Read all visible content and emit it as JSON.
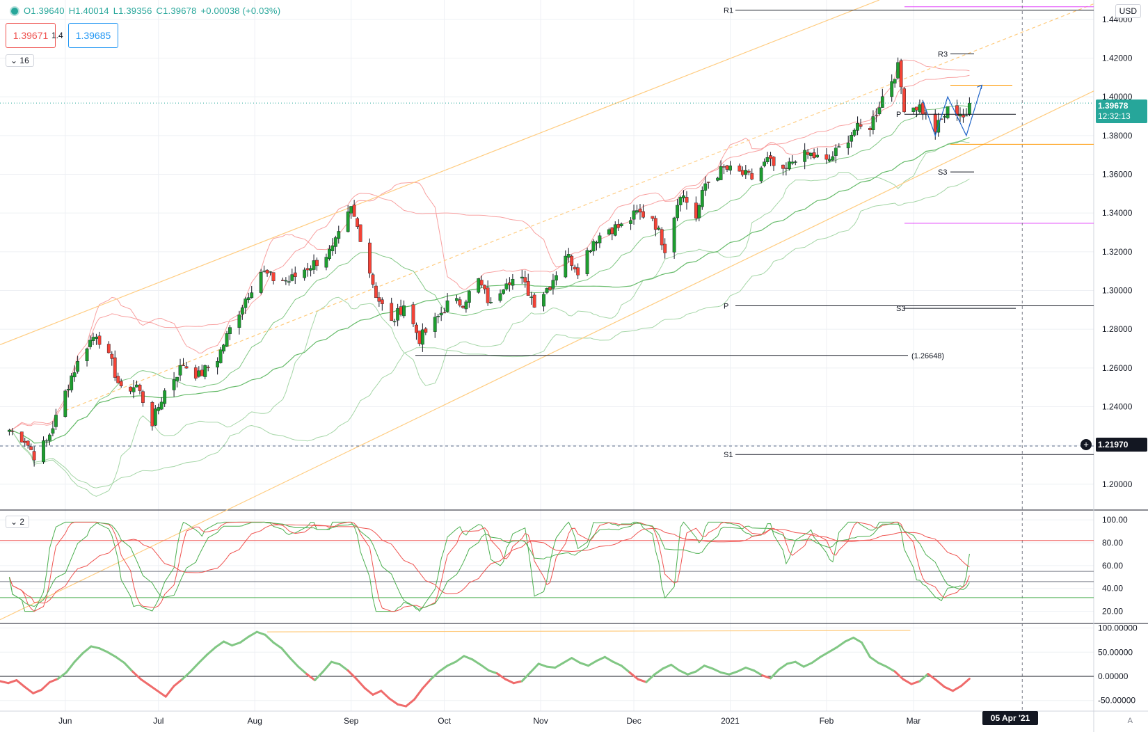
{
  "legend": {
    "open": "O1.39640",
    "high": "H1.40014",
    "low": "L1.39356",
    "close": "C1.39678",
    "change": "+0.00038 (+0.03%)"
  },
  "quote": {
    "bid": "1.39671",
    "spread": "1.4",
    "ask": "1.39685"
  },
  "main_pane_label": "16",
  "stoch_pane_label": "2",
  "currency": "USD",
  "last_price": "1.39678",
  "countdown": "12:32:13",
  "crosshair_price": "1.21970",
  "crosshair_date": "05 Apr '21",
  "scale_mode": "A",
  "colors": {
    "up": "#26a69a",
    "down": "#ef5350",
    "upCandle": "#1e9e2f",
    "downCandle": "#f44336"
  },
  "chart_data": [
    {
      "type": "candlestick",
      "y_ticks": [
        "1.44000",
        "1.42000",
        "1.40000",
        "1.38000",
        "1.36000",
        "1.34000",
        "1.32000",
        "1.30000",
        "1.28000",
        "1.26000",
        "1.24000",
        "1.22000",
        "1.20000"
      ],
      "ylim": [
        1.187,
        1.45
      ],
      "x_ticks": [
        "Jun",
        "Jul",
        "Aug",
        "Sep",
        "Oct",
        "Nov",
        "Dec",
        "2021",
        "Feb",
        "Mar"
      ],
      "pivot_labels": [
        {
          "label": "R1",
          "price": 1.4448
        },
        {
          "label": "R3",
          "price": 1.4222
        },
        {
          "label": "P",
          "price": 1.391
        },
        {
          "label": "S3",
          "price": 1.3612
        },
        {
          "label": "P",
          "price": 1.2921
        },
        {
          "label": "S3",
          "price": 1.2908
        },
        {
          "label": "S1",
          "price": 1.2153
        }
      ],
      "annotation": {
        "label": "(1.26648)",
        "price": 1.26648
      },
      "close_path": [
        [
          "2020-05-14",
          1.228
        ],
        [
          "2020-05-19",
          1.223
        ],
        [
          "2020-05-22",
          1.215
        ],
        [
          "2020-05-26",
          1.222
        ],
        [
          "2020-05-29",
          1.234
        ],
        [
          "2020-06-03",
          1.256
        ],
        [
          "2020-06-08",
          1.272
        ],
        [
          "2020-06-11",
          1.278
        ],
        [
          "2020-06-16",
          1.262
        ],
        [
          "2020-06-19",
          1.248
        ],
        [
          "2020-06-24",
          1.251
        ],
        [
          "2020-06-29",
          1.232
        ],
        [
          "2020-07-03",
          1.248
        ],
        [
          "2020-07-09",
          1.262
        ],
        [
          "2020-07-14",
          1.256
        ],
        [
          "2020-07-20",
          1.265
        ],
        [
          "2020-07-24",
          1.28
        ],
        [
          "2020-07-29",
          1.296
        ],
        [
          "2020-08-03",
          1.31
        ],
        [
          "2020-08-07",
          1.306
        ],
        [
          "2020-08-12",
          1.305
        ],
        [
          "2020-08-17",
          1.311
        ],
        [
          "2020-08-21",
          1.315
        ],
        [
          "2020-08-26",
          1.321
        ],
        [
          "2020-09-01",
          1.342
        ],
        [
          "2020-09-04",
          1.328
        ],
        [
          "2020-09-09",
          1.298
        ],
        [
          "2020-09-14",
          1.283
        ],
        [
          "2020-09-18",
          1.293
        ],
        [
          "2020-09-23",
          1.275
        ],
        [
          "2020-09-28",
          1.284
        ],
        [
          "2020-10-02",
          1.293
        ],
        [
          "2020-10-07",
          1.294
        ],
        [
          "2020-10-12",
          1.305
        ],
        [
          "2020-10-16",
          1.292
        ],
        [
          "2020-10-21",
          1.306
        ],
        [
          "2020-10-26",
          1.305
        ],
        [
          "2020-10-30",
          1.294
        ],
        [
          "2020-11-04",
          1.303
        ],
        [
          "2020-11-09",
          1.319
        ],
        [
          "2020-11-13",
          1.311
        ],
        [
          "2020-11-18",
          1.326
        ],
        [
          "2020-11-23",
          1.332
        ],
        [
          "2020-11-27",
          1.333
        ],
        [
          "2020-12-02",
          1.34
        ],
        [
          "2020-12-07",
          1.338
        ],
        [
          "2020-12-11",
          1.322
        ],
        [
          "2020-12-16",
          1.351
        ],
        [
          "2020-12-21",
          1.338
        ],
        [
          "2020-12-24",
          1.355
        ],
        [
          "2020-12-30",
          1.363
        ],
        [
          "2021-01-05",
          1.36
        ],
        [
          "2021-01-08",
          1.358
        ],
        [
          "2021-01-13",
          1.367
        ],
        [
          "2021-01-18",
          1.36
        ],
        [
          "2021-01-22",
          1.369
        ],
        [
          "2021-01-27",
          1.37
        ],
        [
          "2021-02-01",
          1.366
        ],
        [
          "2021-02-05",
          1.373
        ],
        [
          "2021-02-10",
          1.383
        ],
        [
          "2021-02-15",
          1.385
        ],
        [
          "2021-02-19",
          1.4
        ],
        [
          "2021-02-24",
          1.415
        ],
        [
          "2021-02-26",
          1.395
        ],
        [
          "2021-03-03",
          1.395
        ],
        [
          "2021-03-08",
          1.383
        ],
        [
          "2021-03-12",
          1.393
        ],
        [
          "2021-03-16",
          1.392
        ],
        [
          "2021-03-18",
          1.388
        ],
        [
          "2021-03-19",
          1.3968
        ]
      ]
    },
    {
      "type": "line",
      "name": "stochastic",
      "y_ticks": [
        "100.00",
        "80.00",
        "60.00",
        "40.00",
        "20.00"
      ],
      "ylim": [
        10,
        108
      ],
      "levels": [
        82,
        55,
        46,
        32
      ]
    },
    {
      "type": "line",
      "name": "oscillator",
      "y_ticks": [
        "100.00000",
        "50.00000",
        "0.00000",
        "-50.00000"
      ],
      "ylim": [
        -72,
        108
      ],
      "values": [
        -10,
        -14,
        -8,
        -22,
        -35,
        -28,
        -12,
        -5,
        8,
        30,
        48,
        62,
        58,
        50,
        40,
        28,
        10,
        -6,
        -18,
        -30,
        -42,
        -20,
        -6,
        10,
        28,
        45,
        60,
        72,
        64,
        70,
        82,
        92,
        86,
        70,
        58,
        38,
        20,
        5,
        -8,
        10,
        30,
        25,
        12,
        -5,
        -24,
        -38,
        -30,
        -46,
        -58,
        -62,
        -48,
        -25,
        -6,
        10,
        22,
        30,
        42,
        35,
        24,
        12,
        6,
        -6,
        -14,
        -10,
        8,
        26,
        20,
        18,
        28,
        38,
        28,
        22,
        32,
        40,
        30,
        22,
        8,
        -6,
        -12,
        4,
        16,
        24,
        12,
        4,
        10,
        22,
        16,
        8,
        4,
        10,
        18,
        12,
        2,
        -4,
        14,
        26,
        30,
        20,
        28,
        40,
        50,
        60,
        72,
        80,
        70,
        40,
        28,
        20,
        10,
        -6,
        -16,
        -10,
        5,
        -8,
        -22,
        -30,
        -20,
        -5
      ]
    }
  ]
}
